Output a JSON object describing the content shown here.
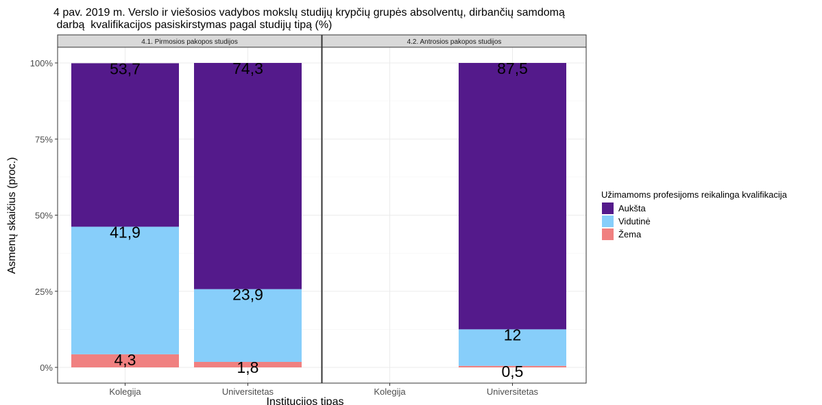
{
  "chart_data": {
    "type": "bar",
    "stacked": true,
    "title_line1": "4 pav. 2019 m.  Verslo ir viešosios vadybos mokslų  studijų krypčių grupės absolventų, dirbančių samdomą",
    "title_line2": " darbą  kvalifikacijos pasiskirstymas pagal studijų tipą (%)",
    "xlabel": "Institucijos tipas",
    "ylabel": "Asmenų skaičius (proc.)",
    "ylim": [
      0,
      100
    ],
    "y_ticks": [
      "0%",
      "25%",
      "50%",
      "75%",
      "100%"
    ],
    "y_tick_values": [
      0,
      25,
      50,
      75,
      100
    ],
    "grid": true,
    "legend": {
      "position": "right",
      "title": "Užimamoms profesijoms reikalinga kvalifikacija",
      "items": [
        {
          "name": "Aukšta",
          "color": "#541a8b"
        },
        {
          "name": "Vidutinė",
          "color": "#87cefa"
        },
        {
          "name": "Žema",
          "color": "#f08080"
        }
      ]
    },
    "categories": [
      "Kolegija",
      "Universitetas"
    ],
    "panels": [
      {
        "strip": "4.1. Pirmosios pakopos studijos",
        "series": [
          {
            "name": "Žema",
            "values": [
              4.3,
              1.8
            ],
            "labels": [
              "4,3",
              "1,8"
            ]
          },
          {
            "name": "Vidutinė",
            "values": [
              41.9,
              23.9
            ],
            "labels": [
              "41,9",
              "23,9"
            ]
          },
          {
            "name": "Aukšta",
            "values": [
              53.7,
              74.3
            ],
            "labels": [
              "53,7",
              "74,3"
            ]
          }
        ]
      },
      {
        "strip": "4.2. Antrosios pakopos studijos",
        "series": [
          {
            "name": "Žema",
            "values": [
              null,
              0.5
            ],
            "labels": [
              "",
              "0,5"
            ]
          },
          {
            "name": "Vidutinė",
            "values": [
              null,
              12
            ],
            "labels": [
              "",
              "12"
            ]
          },
          {
            "name": "Aukšta",
            "values": [
              null,
              87.5
            ],
            "labels": [
              "",
              "87,5"
            ]
          }
        ]
      }
    ]
  }
}
